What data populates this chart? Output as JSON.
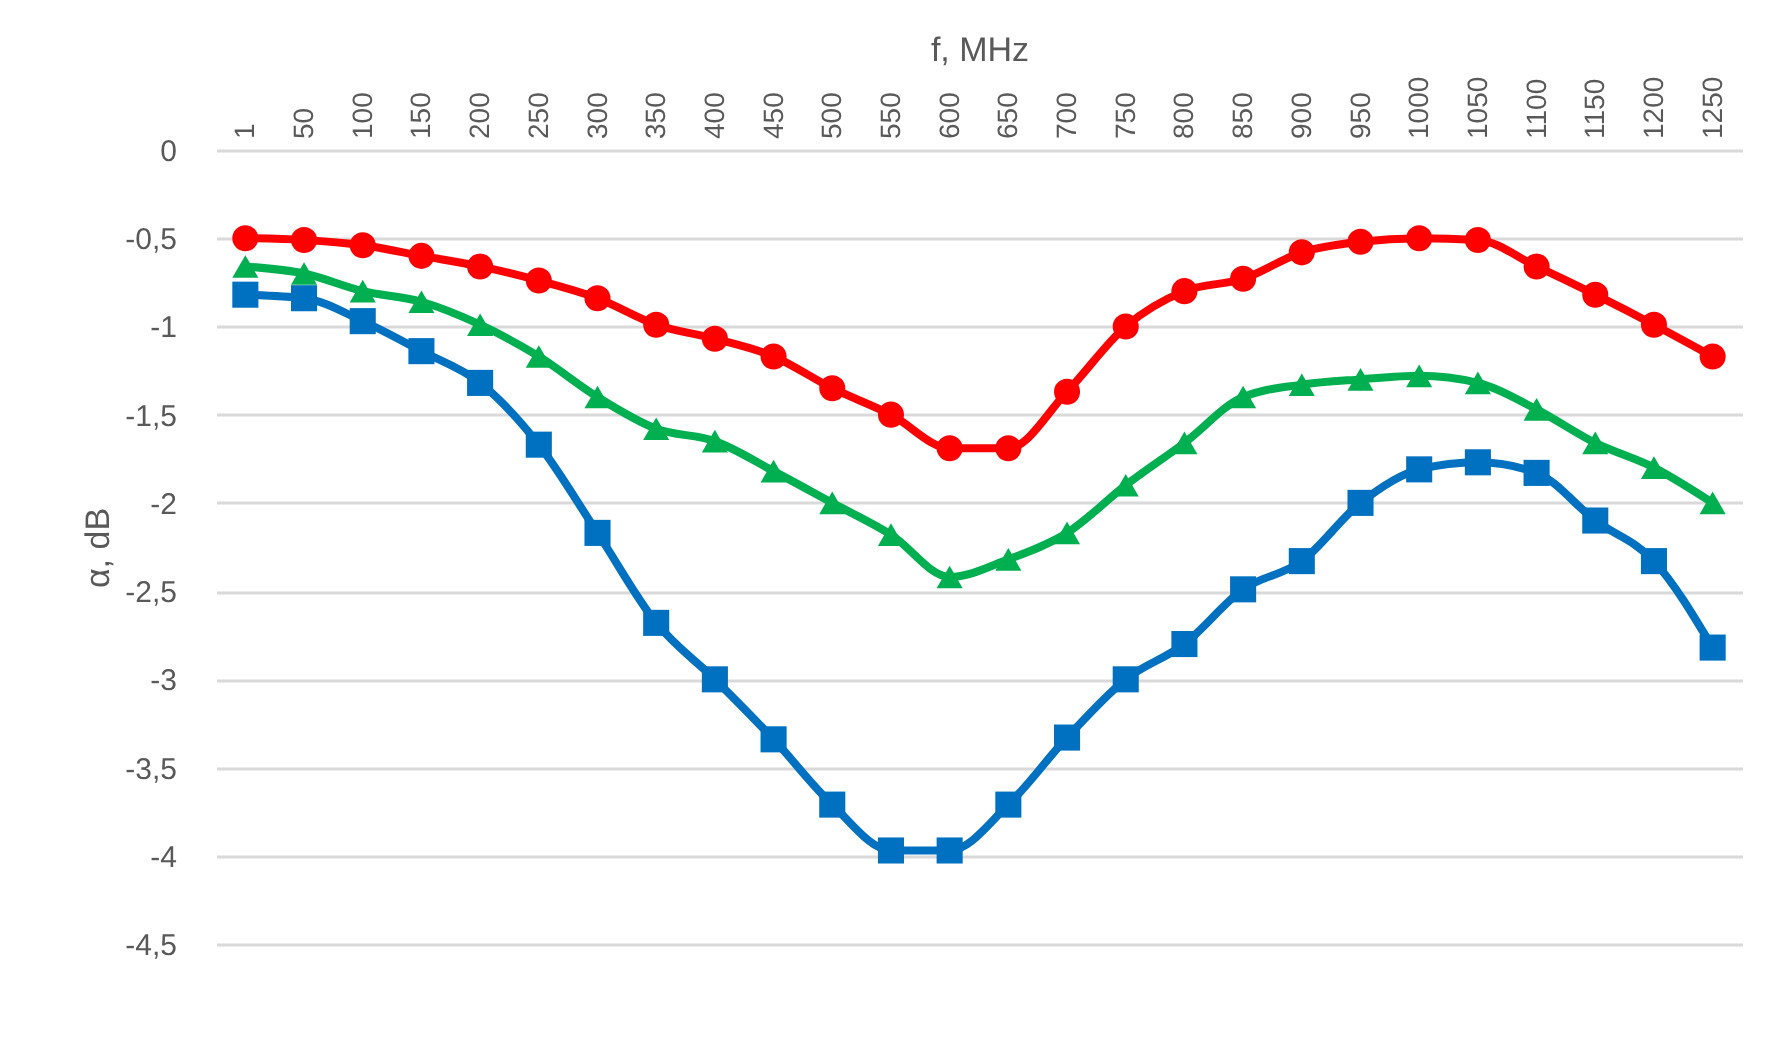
{
  "chart_data": {
    "type": "line",
    "xlabel": "f, MHz",
    "ylabel": "α, dB",
    "categories": [
      "1",
      "50",
      "100",
      "150",
      "200",
      "250",
      "300",
      "350",
      "400",
      "450",
      "500",
      "550",
      "600",
      "650",
      "700",
      "750",
      "800",
      "850",
      "900",
      "950",
      "1000",
      "1050",
      "1100",
      "1150",
      "1200",
      "1250"
    ],
    "series": [
      {
        "color": "#ff0000",
        "marker": "circle",
        "values": [
          -0.5,
          -0.51,
          -0.54,
          -0.6,
          -0.66,
          -0.74,
          -0.84,
          -0.99,
          -1.07,
          -1.17,
          -1.35,
          -1.5,
          -1.69,
          -1.69,
          -1.37,
          -1.0,
          -0.8,
          -0.73,
          -0.58,
          -0.52,
          -0.5,
          -0.51,
          -0.66,
          -0.82,
          -0.99,
          -1.17
        ]
      },
      {
        "color": "#00b050",
        "marker": "triangle",
        "values": [
          -0.66,
          -0.7,
          -0.8,
          -0.86,
          -0.99,
          -1.17,
          -1.4,
          -1.58,
          -1.65,
          -1.82,
          -2.0,
          -2.18,
          -2.42,
          -2.32,
          -2.17,
          -1.9,
          -1.66,
          -1.4,
          -1.33,
          -1.3,
          -1.28,
          -1.32,
          -1.47,
          -1.66,
          -1.8,
          -2.0
        ]
      },
      {
        "color": "#0070c0",
        "marker": "square",
        "values": [
          -0.82,
          -0.84,
          -0.97,
          -1.14,
          -1.32,
          -1.67,
          -2.17,
          -2.68,
          -3.0,
          -3.34,
          -3.71,
          -3.97,
          -3.97,
          -3.71,
          -3.33,
          -3.0,
          -2.8,
          -2.49,
          -2.33,
          -2.0,
          -1.81,
          -1.77,
          -1.83,
          -2.1,
          -2.33,
          -2.82
        ]
      }
    ],
    "ylim": [
      -4.5,
      0
    ],
    "yticks": [
      0,
      {
        "value": -0.5,
        "label": "-0,5"
      },
      -1,
      {
        "value": -1.5,
        "label": "-1,5"
      },
      -2,
      {
        "value": -2.5,
        "label": "-2,5"
      },
      -3,
      {
        "value": -3.5,
        "label": "-3,5"
      },
      -4,
      {
        "value": -4.5,
        "label": "-4,5"
      }
    ],
    "grid": "y"
  }
}
